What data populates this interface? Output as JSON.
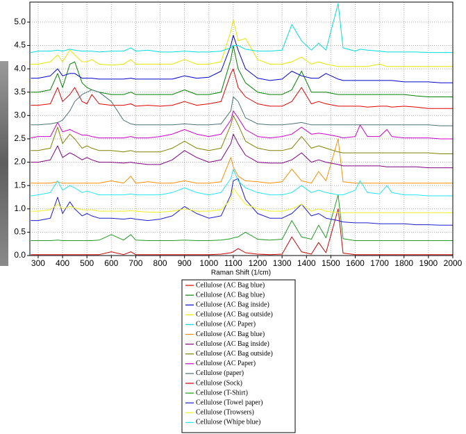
{
  "chart_data": {
    "type": "line",
    "x_label": "Raman Shift (1/cm)",
    "x": [
      270,
      300,
      350,
      380,
      400,
      430,
      450,
      480,
      500,
      520,
      550,
      600,
      650,
      680,
      700,
      750,
      800,
      850,
      900,
      950,
      1000,
      1050,
      1090,
      1100,
      1120,
      1150,
      1200,
      1250,
      1300,
      1340,
      1380,
      1420,
      1450,
      1480,
      1530,
      1550,
      1600,
      1620,
      1650,
      1700,
      1730,
      1750,
      1800,
      1850,
      1900,
      1950,
      2000
    ],
    "xlim": [
      266,
      2000
    ],
    "xticks": [
      300,
      400,
      500,
      600,
      700,
      800,
      900,
      1000,
      1100,
      1200,
      1300,
      1400,
      1500,
      1600,
      1700,
      1800,
      1900,
      2000
    ],
    "ylim": [
      0,
      5.43
    ],
    "yticks": [
      {
        "value": 0,
        "label": "0.0"
      },
      0.5,
      {
        "value": 1,
        "label": "1.0"
      },
      1.5,
      {
        "value": 2,
        "label": "2.0"
      },
      2.5,
      {
        "value": 3,
        "label": "3.0"
      },
      3.5,
      {
        "value": 4,
        "label": "4.0"
      },
      4.5,
      {
        "value": 5,
        "label": "5.0"
      }
    ],
    "grid": true,
    "series": [
      {
        "name": "Cellulose (AC Bag blue)",
        "color": "#e00000",
        "values": [
          3.22,
          3.22,
          3.25,
          3.6,
          3.3,
          3.45,
          3.6,
          3.3,
          3.25,
          3.45,
          3.25,
          3.22,
          3.22,
          3.25,
          3.2,
          3.22,
          3.2,
          3.22,
          3.3,
          3.22,
          3.25,
          3.3,
          3.9,
          4.0,
          3.6,
          3.4,
          3.25,
          3.2,
          3.2,
          3.3,
          3.6,
          3.25,
          3.3,
          3.25,
          3.2,
          3.2,
          3.2,
          3.2,
          3.18,
          3.2,
          3.2,
          3.18,
          3.2,
          3.18,
          3.15,
          3.15,
          3.15
        ]
      },
      {
        "name": "Cellulose (AC Bag blue)",
        "color": "#008000",
        "values": [
          3.5,
          3.5,
          3.55,
          3.9,
          3.6,
          4.1,
          4.15,
          3.7,
          3.6,
          3.55,
          3.5,
          3.45,
          3.45,
          3.5,
          3.45,
          3.45,
          3.45,
          3.45,
          3.55,
          3.45,
          3.45,
          3.5,
          4.2,
          4.5,
          4.0,
          3.7,
          3.5,
          3.45,
          3.45,
          3.55,
          3.95,
          3.5,
          3.5,
          3.5,
          3.45,
          3.45,
          3.45,
          3.45,
          3.45,
          3.45,
          3.45,
          3.45,
          3.45,
          3.42,
          3.4,
          3.4,
          3.4
        ]
      },
      {
        "name": "Cellulose (AC Bag inside)",
        "color": "#0000cc",
        "values": [
          3.8,
          3.8,
          3.85,
          4.0,
          3.85,
          3.9,
          3.9,
          3.8,
          3.8,
          3.8,
          3.78,
          3.78,
          3.78,
          3.8,
          3.78,
          3.78,
          3.78,
          3.78,
          3.85,
          3.8,
          3.82,
          3.95,
          4.5,
          4.72,
          4.4,
          4.0,
          3.8,
          3.75,
          3.78,
          3.95,
          3.85,
          3.8,
          3.8,
          3.9,
          3.78,
          3.75,
          3.75,
          3.75,
          3.75,
          3.75,
          3.75,
          3.75,
          3.72,
          3.72,
          3.72,
          3.7,
          3.7
        ]
      },
      {
        "name": "Cellulose (AC Bag outside)",
        "color": "#e6e600",
        "values": [
          4.1,
          4.1,
          4.15,
          4.3,
          4.15,
          4.4,
          4.3,
          4.15,
          4.15,
          4.2,
          4.1,
          4.08,
          4.1,
          4.2,
          4.1,
          4.1,
          4.1,
          4.1,
          4.2,
          4.1,
          4.1,
          4.15,
          4.8,
          5.05,
          4.6,
          4.65,
          4.2,
          4.1,
          4.1,
          4.15,
          4.25,
          4.1,
          4.15,
          4.1,
          4.05,
          4.05,
          4.05,
          4.05,
          4.05,
          4.1,
          4.05,
          4.05,
          4.05,
          4.05,
          4.05,
          4.05,
          4.05
        ]
      },
      {
        "name": "Cellulose (AC Paper)",
        "color": "#00dddd",
        "values": [
          4.35,
          4.38,
          4.38,
          4.4,
          4.38,
          4.42,
          4.4,
          4.38,
          4.38,
          4.38,
          4.36,
          4.38,
          4.38,
          4.45,
          4.38,
          4.4,
          4.36,
          4.36,
          4.38,
          4.36,
          4.36,
          4.38,
          4.45,
          4.5,
          4.5,
          4.42,
          4.38,
          4.38,
          4.4,
          4.95,
          4.6,
          4.4,
          4.55,
          4.4,
          5.4,
          4.45,
          4.38,
          4.42,
          4.4,
          4.38,
          4.36,
          4.36,
          4.36,
          4.36,
          4.35,
          4.35,
          4.35
        ]
      },
      {
        "name": "Cellulose (AC Bag blue)",
        "color": "#ff8c00",
        "values": [
          1.55,
          1.55,
          1.55,
          1.58,
          1.55,
          1.55,
          1.55,
          1.55,
          1.55,
          1.55,
          1.55,
          1.6,
          1.55,
          1.7,
          1.55,
          1.58,
          1.55,
          1.55,
          1.6,
          1.55,
          1.55,
          1.58,
          2.1,
          1.9,
          1.7,
          1.6,
          1.58,
          1.55,
          1.58,
          1.85,
          1.6,
          1.55,
          1.8,
          1.6,
          2.5,
          1.58,
          1.55,
          1.55,
          1.55,
          1.55,
          1.55,
          1.55,
          1.55,
          1.55,
          1.55,
          1.55,
          1.55
        ]
      },
      {
        "name": "Cellulose (AC Bag inside)",
        "color": "#800080",
        "values": [
          2.0,
          2.0,
          2.05,
          2.35,
          2.1,
          2.2,
          2.15,
          2.05,
          2.1,
          2.05,
          2.0,
          2.0,
          1.98,
          2.0,
          1.98,
          1.95,
          1.95,
          2.05,
          2.25,
          2.1,
          2.0,
          2.05,
          2.4,
          2.6,
          2.4,
          2.15,
          2.0,
          1.98,
          1.98,
          2.05,
          2.2,
          2.0,
          2.05,
          2.0,
          1.95,
          1.92,
          1.92,
          1.92,
          1.92,
          1.92,
          1.9,
          1.9,
          1.9,
          1.9,
          1.88,
          1.88,
          1.88
        ]
      },
      {
        "name": "Cellulose (AC Bag outside)",
        "color": "#808000",
        "values": [
          2.25,
          2.25,
          2.3,
          2.75,
          2.4,
          2.6,
          2.5,
          2.3,
          2.35,
          2.3,
          2.25,
          2.25,
          2.22,
          2.25,
          2.22,
          2.22,
          2.22,
          2.3,
          2.45,
          2.3,
          2.25,
          2.3,
          2.8,
          3.0,
          2.8,
          2.45,
          2.3,
          2.25,
          2.25,
          2.3,
          2.55,
          2.3,
          2.35,
          2.3,
          2.22,
          2.2,
          2.2,
          2.2,
          2.2,
          2.2,
          2.2,
          2.2,
          2.2,
          2.2,
          2.2,
          2.18,
          2.18
        ]
      },
      {
        "name": "Cellulose (AC Paper)",
        "color": "#cc00cc",
        "values": [
          2.52,
          2.55,
          2.55,
          2.85,
          2.65,
          2.7,
          2.65,
          2.58,
          2.58,
          2.55,
          2.52,
          2.52,
          2.52,
          2.55,
          2.52,
          2.52,
          2.55,
          2.6,
          2.7,
          2.6,
          2.55,
          2.6,
          2.9,
          3.1,
          2.95,
          2.7,
          2.55,
          2.52,
          2.55,
          2.6,
          2.75,
          2.6,
          2.62,
          2.6,
          2.55,
          2.52,
          2.55,
          2.8,
          2.55,
          2.55,
          2.7,
          2.55,
          2.52,
          2.52,
          2.52,
          2.5,
          2.5
        ]
      },
      {
        "name": "Cellulose (paper)",
        "color": "#4a7272",
        "values": [
          2.8,
          2.8,
          2.82,
          2.85,
          2.9,
          3.1,
          3.3,
          3.45,
          3.5,
          3.55,
          3.5,
          3.3,
          2.9,
          2.82,
          2.8,
          2.8,
          2.8,
          2.8,
          2.82,
          2.8,
          2.8,
          2.82,
          3.1,
          3.4,
          3.3,
          2.95,
          2.82,
          2.8,
          2.8,
          2.82,
          2.85,
          2.8,
          2.8,
          2.8,
          2.8,
          2.8,
          2.8,
          2.8,
          2.8,
          2.8,
          2.8,
          2.8,
          2.8,
          2.8,
          2.8,
          2.78,
          2.78
        ]
      },
      {
        "name": "Cellulose (Sock)",
        "color": "#cc0000",
        "values": [
          0.02,
          0.02,
          0.02,
          0.02,
          0.02,
          0.02,
          0.02,
          0.02,
          0.02,
          0.02,
          0.02,
          0.08,
          0.02,
          0.08,
          0.02,
          0.02,
          0.02,
          0.02,
          0.02,
          0.02,
          0.02,
          0.03,
          0.06,
          0.08,
          0.15,
          0.06,
          0.03,
          0.02,
          0.03,
          0.4,
          0.08,
          0.03,
          0.28,
          0.06,
          1.0,
          0.05,
          0.02,
          0.02,
          0.02,
          0.02,
          0.02,
          0.02,
          0.02,
          0.02,
          0.02,
          0.02,
          0.02
        ]
      },
      {
        "name": "Cellulose (T-Shirt)",
        "color": "#229922",
        "values": [
          0.32,
          0.32,
          0.32,
          0.33,
          0.32,
          0.32,
          0.32,
          0.32,
          0.32,
          0.32,
          0.33,
          0.45,
          0.33,
          0.45,
          0.33,
          0.32,
          0.32,
          0.32,
          0.33,
          0.32,
          0.32,
          0.33,
          0.36,
          0.38,
          0.4,
          0.5,
          0.35,
          0.33,
          0.35,
          0.75,
          0.4,
          0.35,
          0.65,
          0.38,
          1.3,
          0.36,
          0.32,
          0.32,
          0.32,
          0.32,
          0.32,
          0.32,
          0.32,
          0.32,
          0.32,
          0.32,
          0.32
        ]
      },
      {
        "name": "Cellulose (Towel paper)",
        "color": "#1a1ad0",
        "values": [
          0.75,
          0.75,
          0.8,
          1.25,
          0.9,
          1.15,
          1.0,
          0.85,
          0.9,
          0.85,
          0.8,
          0.8,
          0.78,
          0.8,
          0.78,
          0.75,
          0.78,
          0.85,
          1.05,
          0.9,
          0.8,
          0.85,
          1.3,
          1.6,
          1.65,
          1.2,
          0.9,
          0.8,
          0.8,
          0.9,
          1.1,
          0.85,
          0.9,
          0.8,
          0.75,
          0.72,
          0.7,
          0.7,
          0.7,
          0.68,
          0.68,
          0.68,
          0.68,
          0.66,
          0.66,
          0.65,
          0.65
        ]
      },
      {
        "name": "Cellulose (Trowsers)",
        "color": "#f0f020",
        "values": [
          0.95,
          0.95,
          0.98,
          1.1,
          1.0,
          1.05,
          1.02,
          0.98,
          0.98,
          0.98,
          0.95,
          0.95,
          0.95,
          0.96,
          0.95,
          0.93,
          0.93,
          0.95,
          1.0,
          0.95,
          0.95,
          0.98,
          1.2,
          1.45,
          1.3,
          1.1,
          1.0,
          0.95,
          0.95,
          1.0,
          1.1,
          0.95,
          1.0,
          0.95,
          0.92,
          0.92,
          0.92,
          0.92,
          0.92,
          0.92,
          0.92,
          0.92,
          0.92,
          0.92,
          0.92,
          0.92,
          0.92
        ]
      },
      {
        "name": "Cellulose (Whipe blue)",
        "color": "#22e6f0",
        "values": [
          1.28,
          1.3,
          1.35,
          1.6,
          1.4,
          1.5,
          1.45,
          1.35,
          1.38,
          1.35,
          1.3,
          1.3,
          1.3,
          1.32,
          1.3,
          1.3,
          1.3,
          1.35,
          1.45,
          1.35,
          1.3,
          1.35,
          1.65,
          1.85,
          1.6,
          1.45,
          1.35,
          1.3,
          1.3,
          1.35,
          1.5,
          1.35,
          1.4,
          1.35,
          1.3,
          1.3,
          1.4,
          1.6,
          1.35,
          1.32,
          1.5,
          1.35,
          1.3,
          1.3,
          1.28,
          1.28,
          1.28
        ]
      }
    ]
  }
}
